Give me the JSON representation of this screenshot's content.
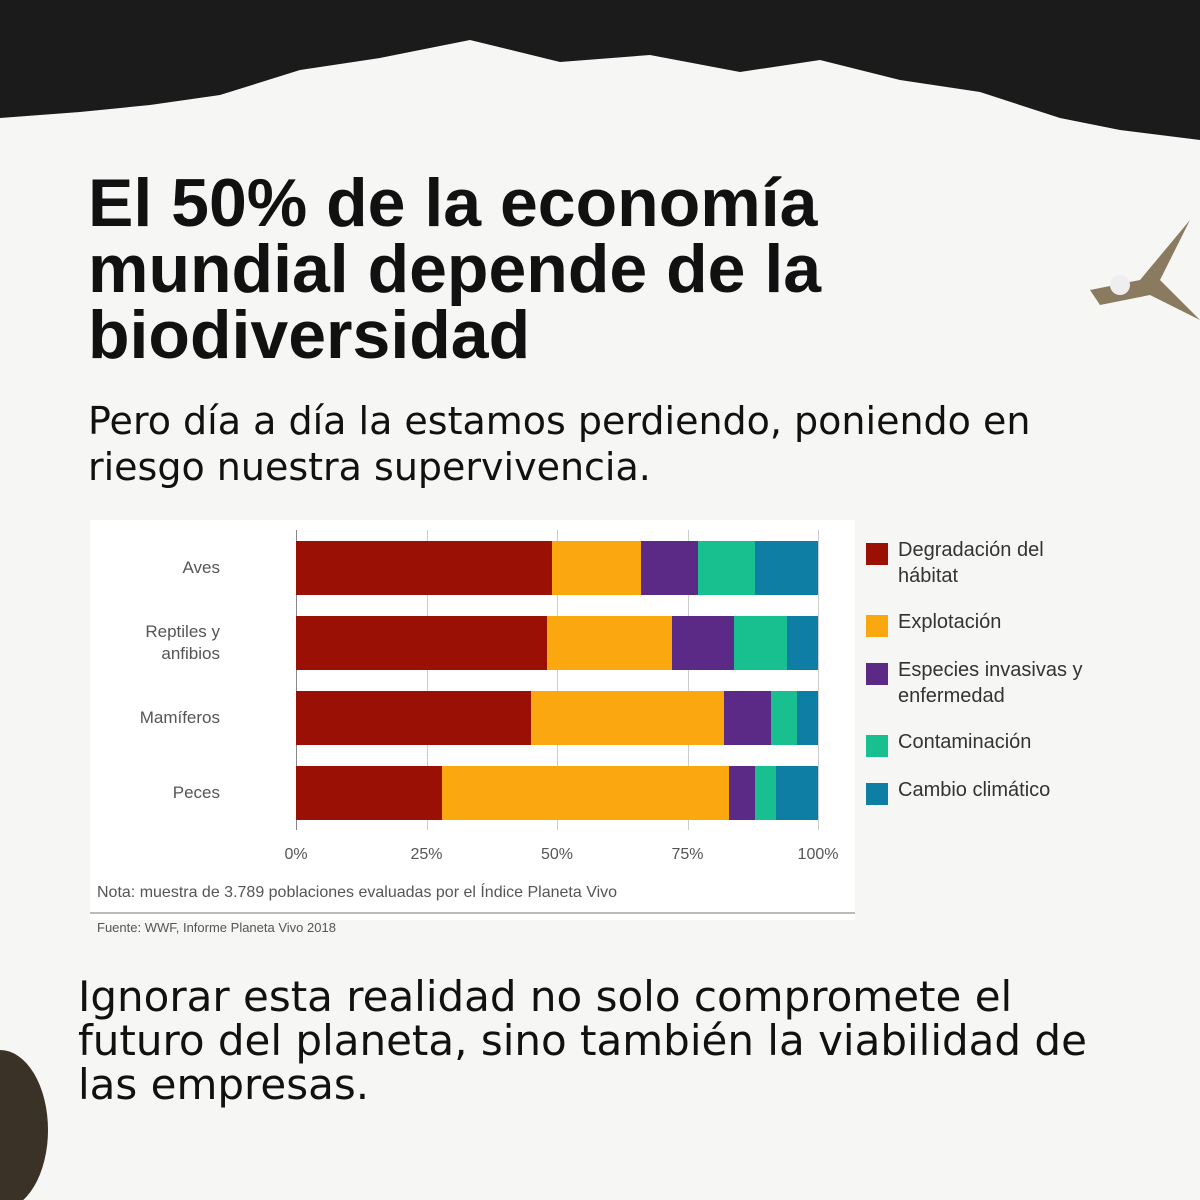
{
  "header": {
    "title": "El 50% de la economía mundial depende de la biodiversidad",
    "subtitle": "Pero día a día la estamos perdiendo, poniendo en riesgo nuestra supervivencia."
  },
  "chart_data": {
    "type": "bar",
    "orientation": "horizontal",
    "stacked": true,
    "categories": [
      "Aves",
      "Reptiles y anfibios",
      "Mamíferos",
      "Peces"
    ],
    "series": [
      {
        "name": "Degradación del hábitat",
        "color": "#9b1004",
        "values": [
          49,
          48,
          45,
          28
        ]
      },
      {
        "name": "Explotación",
        "color": "#fba70f",
        "values": [
          17,
          24,
          37,
          55
        ]
      },
      {
        "name": "Especies invasivas y enfermedad",
        "color": "#5a2a86",
        "values": [
          11,
          12,
          9,
          5
        ]
      },
      {
        "name": "Contaminación",
        "color": "#18c08f",
        "values": [
          11,
          10,
          5,
          4
        ]
      },
      {
        "name": "Cambio climático",
        "color": "#0f7ea4",
        "values": [
          12,
          6,
          4,
          8
        ]
      }
    ],
    "xlim": [
      0,
      100
    ],
    "xticks": [
      {
        "value": 0,
        "label": "0%"
      },
      {
        "value": 25,
        "label": "25%"
      },
      {
        "value": 50,
        "label": "50%"
      },
      {
        "value": 75,
        "label": "75%"
      },
      {
        "value": 100,
        "label": "100%"
      }
    ],
    "grid": true,
    "legend": "right",
    "note": "Nota: muestra de 3.789 poblaciones evaluadas por el Índice Planeta Vivo",
    "source": "Fuente: WWF, Informe Planeta Vivo 2018"
  },
  "footer": {
    "text": "Ignorar esta realidad no solo compromete el futuro del planeta, sino también la viabilidad de las empresas."
  }
}
